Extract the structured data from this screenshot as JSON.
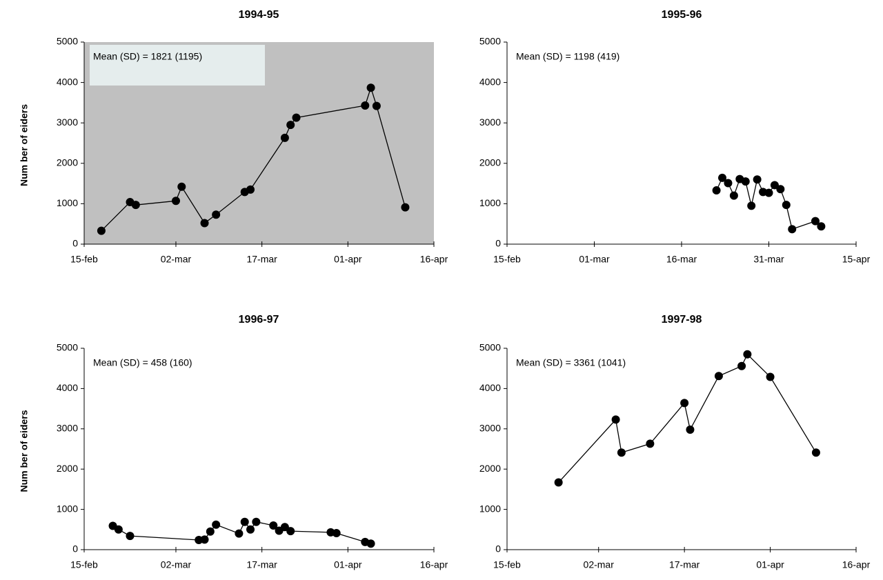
{
  "colors": {
    "background": "#ffffff",
    "shaded_plot": "#c0c0c0",
    "stat_box": "#e5eded",
    "series": "#000000"
  },
  "chart_data": [
    {
      "type": "line",
      "title": "1994-95",
      "ylabel": "Num ber of eiders",
      "annotation": "Mean (SD)  = 1821 (1195)",
      "shaded": true,
      "xlim": [
        "2000-02-15",
        "2000-04-16"
      ],
      "x_ticks": [
        "2000-02-15",
        "2000-03-02",
        "2000-03-17",
        "2000-04-01",
        "2000-04-16"
      ],
      "x_tick_labels": [
        "15-feb",
        "02-mar",
        "17-mar",
        "01-apr",
        "16-apr"
      ],
      "ylim": [
        0,
        5000
      ],
      "y_ticks": [
        0,
        1000,
        2000,
        3000,
        4000,
        5000
      ],
      "y_tick_labels": [
        "0",
        "1000",
        "2000",
        "3000",
        "4000",
        "5000"
      ],
      "x": [
        "2000-02-18",
        "2000-02-23",
        "2000-02-24",
        "2000-03-02",
        "2000-03-03",
        "2000-03-07",
        "2000-03-09",
        "2000-03-14",
        "2000-03-15",
        "2000-03-21",
        "2000-03-22",
        "2000-03-23",
        "2000-04-04",
        "2000-04-05",
        "2000-04-06",
        "2000-04-11"
      ],
      "y": [
        330,
        1040,
        970,
        1070,
        1420,
        520,
        730,
        1290,
        1350,
        2630,
        2950,
        3130,
        3430,
        3870,
        3420,
        910
      ]
    },
    {
      "type": "line",
      "title": "1995-96",
      "ylabel": "",
      "annotation": "Mean (SD)  = 1198 (419)",
      "shaded": false,
      "xlim": [
        "2000-02-15",
        "2000-04-15"
      ],
      "x_ticks": [
        "2000-02-15",
        "2000-03-01",
        "2000-03-16",
        "2000-03-31",
        "2000-04-15"
      ],
      "x_tick_labels": [
        "15-feb",
        "01-mar",
        "16-mar",
        "31-mar",
        "15-apr"
      ],
      "ylim": [
        0,
        5000
      ],
      "y_ticks": [
        0,
        1000,
        2000,
        3000,
        4000,
        5000
      ],
      "y_tick_labels": [
        "0",
        "1000",
        "2000",
        "3000",
        "4000",
        "5000"
      ],
      "x": [
        "2000-03-22",
        "2000-03-23",
        "2000-03-24",
        "2000-03-25",
        "2000-03-26",
        "2000-03-27",
        "2000-03-28",
        "2000-03-29",
        "2000-03-30",
        "2000-03-31",
        "2000-04-01",
        "2000-04-02",
        "2000-04-03",
        "2000-04-04",
        "2000-04-08",
        "2000-04-09"
      ],
      "y": [
        1330,
        1640,
        1510,
        1200,
        1610,
        1550,
        950,
        1600,
        1290,
        1270,
        1460,
        1360,
        970,
        370,
        570,
        440
      ]
    },
    {
      "type": "line",
      "title": "1996-97",
      "ylabel": "Num ber of eiders",
      "annotation": "Mean (SD)  = 458 (160)",
      "shaded": false,
      "xlim": [
        "2000-02-15",
        "2000-04-16"
      ],
      "x_ticks": [
        "2000-02-15",
        "2000-03-02",
        "2000-03-17",
        "2000-04-01",
        "2000-04-16"
      ],
      "x_tick_labels": [
        "15-feb",
        "02-mar",
        "17-mar",
        "01-apr",
        "16-apr"
      ],
      "ylim": [
        0,
        5000
      ],
      "y_ticks": [
        0,
        1000,
        2000,
        3000,
        4000,
        5000
      ],
      "y_tick_labels": [
        "0",
        "1000",
        "2000",
        "3000",
        "4000",
        "5000"
      ],
      "x": [
        "2000-02-20",
        "2000-02-21",
        "2000-02-23",
        "2000-03-06",
        "2000-03-07",
        "2000-03-08",
        "2000-03-09",
        "2000-03-13",
        "2000-03-14",
        "2000-03-15",
        "2000-03-16",
        "2000-03-19",
        "2000-03-20",
        "2000-03-21",
        "2000-03-22",
        "2000-03-29",
        "2000-03-30",
        "2000-04-04",
        "2000-04-05"
      ],
      "y": [
        590,
        500,
        340,
        240,
        250,
        450,
        620,
        400,
        690,
        500,
        690,
        600,
        470,
        560,
        460,
        430,
        410,
        190,
        150
      ]
    },
    {
      "type": "line",
      "title": "1997-98",
      "ylabel": "",
      "annotation": "Mean (SD)  = 3361 (1041)",
      "shaded": false,
      "xlim": [
        "2000-02-15",
        "2000-04-16"
      ],
      "x_ticks": [
        "2000-02-15",
        "2000-03-02",
        "2000-03-17",
        "2000-04-01",
        "2000-04-16"
      ],
      "x_tick_labels": [
        "15-feb",
        "02-mar",
        "17-mar",
        "01-apr",
        "16-apr"
      ],
      "ylim": [
        0,
        5000
      ],
      "y_ticks": [
        0,
        1000,
        2000,
        3000,
        4000,
        5000
      ],
      "y_tick_labels": [
        "0",
        "1000",
        "2000",
        "3000",
        "4000",
        "5000"
      ],
      "x": [
        "2000-02-24",
        "2000-03-05",
        "2000-03-06",
        "2000-03-11",
        "2000-03-17",
        "2000-03-18",
        "2000-03-23",
        "2000-03-27",
        "2000-03-28",
        "2000-04-01",
        "2000-04-09"
      ],
      "y": [
        1670,
        3230,
        2410,
        2630,
        3640,
        2980,
        4310,
        4560,
        4850,
        4290,
        2410
      ]
    }
  ]
}
